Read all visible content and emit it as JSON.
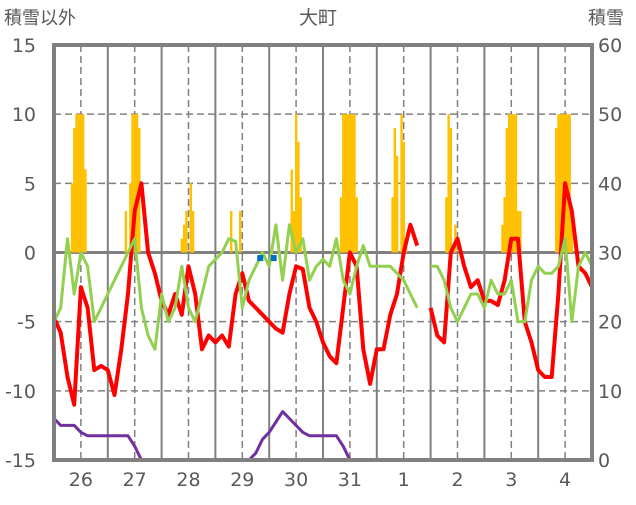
{
  "chart_data": {
    "type": "line",
    "title": "大町",
    "ylabel_left": "積雪以外",
    "ylabel_right": "積雪",
    "ylim_left": [
      -15,
      15
    ],
    "ylim_right": [
      0,
      60
    ],
    "yticks_left": [
      "15",
      "10",
      "5",
      "0",
      "-5",
      "-10",
      "-15"
    ],
    "yticks_right": [
      "60",
      "50",
      "40",
      "30",
      "20",
      "10",
      "0"
    ],
    "x_unit": "hours from start (3h step)",
    "x_range": [
      0,
      240
    ],
    "x_tick_labels": [
      "26",
      "27",
      "28",
      "29",
      "30",
      "31",
      "1",
      "2",
      "3",
      "4"
    ],
    "grid": true,
    "series": [
      {
        "name": "red",
        "axis": "left",
        "color": "#ff0000",
        "values": [
          -4.7,
          -5.8,
          -9,
          -11,
          -2.5,
          -4,
          -8.5,
          -8.2,
          -8.5,
          -10.3,
          -7,
          -3,
          3,
          5,
          0,
          -1.5,
          -3.5,
          -4.5,
          -3,
          -4.5,
          -1,
          -3,
          -7,
          -6,
          -6.5,
          -6,
          -6.8,
          -3,
          -1.5,
          -3.5,
          -4,
          -4.5,
          -5,
          -5.5,
          -5.8,
          -3,
          -1,
          -1.2,
          -4,
          -5,
          -6.5,
          -7.5,
          -8,
          -4,
          0,
          -1,
          -7,
          -9.5,
          -7,
          -7,
          -4.5,
          -3,
          0,
          2,
          0.5,
          null,
          -4,
          -6,
          -6.5,
          0,
          1,
          -1,
          -2.5,
          -2,
          -3.5,
          -3.5,
          -3.8,
          -2,
          1,
          1,
          -5,
          -6.5,
          -8.5,
          -9,
          -9,
          -3,
          5,
          3,
          -1,
          -1.5,
          -2.5
        ]
      },
      {
        "name": "green",
        "axis": "left",
        "color": "#92d050",
        "values": [
          -5,
          -4,
          1,
          -3,
          0,
          -1,
          -5,
          -4,
          -3,
          -2,
          -1,
          0,
          1,
          -4,
          -6,
          -7,
          -3,
          -5,
          -4,
          -1,
          -4,
          -5,
          -3,
          -1,
          -0.5,
          0,
          1,
          0.8,
          -4,
          -2,
          -1,
          0,
          -1,
          2,
          -2,
          2,
          0,
          1,
          -2,
          -1,
          -0.5,
          -1,
          1,
          -2,
          -3,
          -1,
          0.5,
          -1,
          -1,
          -1,
          -1,
          -1.5,
          -2,
          -3,
          -4,
          null,
          -1,
          -1,
          -2,
          -4,
          -5,
          -4,
          -3,
          -3,
          -4,
          -2,
          -3,
          -3,
          -2,
          -5,
          -5,
          -2,
          -1,
          -1.5,
          -1.5,
          -1,
          1,
          -5,
          -1,
          0,
          -1
        ]
      },
      {
        "name": "purple",
        "axis": "right",
        "color": "#7030a0",
        "values": [
          6,
          5,
          5,
          5,
          4,
          3.5,
          3.5,
          3.5,
          3.5,
          3.5,
          3.5,
          3.5,
          2,
          0,
          0,
          0,
          0,
          0,
          0,
          0,
          0,
          0,
          0,
          0,
          0,
          0,
          0,
          0,
          0,
          0,
          1,
          3,
          4,
          5.5,
          7,
          6,
          5,
          4,
          3.5,
          3.5,
          3.5,
          3.5,
          3.5,
          2,
          0,
          0,
          0,
          0,
          0,
          0,
          0,
          0,
          0,
          0,
          0,
          null,
          0,
          0,
          0,
          0,
          0,
          0,
          0,
          0,
          0,
          0,
          0,
          0,
          0,
          0,
          0,
          0,
          0,
          0,
          0,
          0,
          0,
          0,
          0,
          0,
          0
        ]
      },
      {
        "name": "orange-bars",
        "axis": "left",
        "color": "#ffc000",
        "type": "bar",
        "points": [
          [
            8,
            5
          ],
          [
            9,
            9
          ],
          [
            10,
            10
          ],
          [
            11,
            10
          ],
          [
            12,
            10
          ],
          [
            13,
            10
          ],
          [
            14,
            6
          ],
          [
            32,
            3
          ],
          [
            34,
            5
          ],
          [
            35,
            10
          ],
          [
            36,
            10
          ],
          [
            37,
            10
          ],
          [
            38,
            9
          ],
          [
            57,
            1
          ],
          [
            58,
            2
          ],
          [
            59,
            3
          ],
          [
            61,
            5
          ],
          [
            62,
            3
          ],
          [
            79,
            3
          ],
          [
            83,
            3
          ],
          [
            106,
            6
          ],
          [
            107,
            3
          ],
          [
            108,
            10
          ],
          [
            109,
            8
          ],
          [
            110,
            4
          ],
          [
            128,
            4
          ],
          [
            129,
            10
          ],
          [
            130,
            10
          ],
          [
            131,
            10
          ],
          [
            132,
            10
          ],
          [
            133,
            10
          ],
          [
            134,
            10
          ],
          [
            135,
            4
          ],
          [
            151,
            4
          ],
          [
            152,
            9
          ],
          [
            153,
            7
          ],
          [
            155,
            10
          ],
          [
            156,
            8
          ],
          [
            157,
            1
          ],
          [
            175,
            4
          ],
          [
            176,
            10
          ],
          [
            177,
            9
          ],
          [
            179,
            2
          ],
          [
            200,
            2
          ],
          [
            201,
            4
          ],
          [
            202,
            9
          ],
          [
            203,
            10
          ],
          [
            204,
            10
          ],
          [
            205,
            10
          ],
          [
            206,
            10
          ],
          [
            207,
            3
          ],
          [
            208,
            3
          ],
          [
            224,
            9
          ],
          [
            225,
            10
          ],
          [
            226,
            10
          ],
          [
            227,
            10
          ],
          [
            228,
            10
          ],
          [
            229,
            10
          ],
          [
            230,
            10
          ],
          [
            231,
            2
          ]
        ]
      },
      {
        "name": "blue",
        "axis": "left",
        "color": "#0070c0",
        "type": "marker",
        "points": [
          [
            92,
            -0.4
          ],
          [
            98,
            -0.4
          ]
        ]
      }
    ]
  }
}
